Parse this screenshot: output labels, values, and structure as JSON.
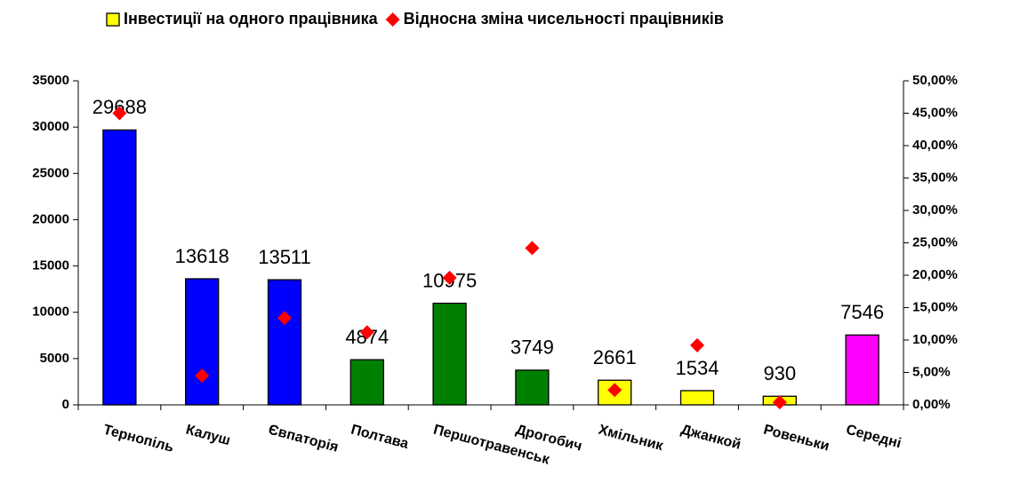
{
  "chart_data": {
    "type": "bar",
    "categories": [
      "Тернопіль",
      "Калуш",
      "Євпаторія",
      "Полтава",
      "Першотравенськ",
      "Дрогобич",
      "Хмільник",
      "Джанкой",
      "Ровеньки",
      "Середні"
    ],
    "series": [
      {
        "name": "Інвестиції на одного працівника",
        "type": "bar",
        "color": "#ffff00",
        "colors": [
          "#0000ff",
          "#0000ff",
          "#0000ff",
          "#008000",
          "#008000",
          "#008000",
          "#ffff00",
          "#ffff00",
          "#ffff00",
          "#ff00ff"
        ],
        "values": [
          29688,
          13618,
          13511,
          4874,
          10975,
          3749,
          2661,
          1534,
          930,
          7546
        ]
      },
      {
        "name": "Відносна зміна чисельності працівників",
        "type": "scatter",
        "axis": "y2",
        "color": "#ff0000",
        "values": [
          45.0,
          4.5,
          13.4,
          11.2,
          19.6,
          24.2,
          2.3,
          9.2,
          0.4,
          null
        ]
      }
    ],
    "ylim": [
      0,
      35000
    ],
    "yticks": [
      0,
      5000,
      10000,
      15000,
      20000,
      25000,
      30000,
      35000
    ],
    "y2lim": [
      0,
      50
    ],
    "y2ticks": [
      {
        "value": 0,
        "label": "0,00%"
      },
      {
        "value": 5,
        "label": "5,00%"
      },
      {
        "value": 10,
        "label": "10,00%"
      },
      {
        "value": 15,
        "label": "15,00%"
      },
      {
        "value": 20,
        "label": "20,00%"
      },
      {
        "value": 25,
        "label": "25,00%"
      },
      {
        "value": 30,
        "label": "30,00%"
      },
      {
        "value": 35,
        "label": "35,00%"
      },
      {
        "value": 40,
        "label": "40,00%"
      },
      {
        "value": 45,
        "label": "45,00%"
      },
      {
        "value": 50,
        "label": "50,00%"
      }
    ],
    "legend": "top",
    "grid": false
  }
}
